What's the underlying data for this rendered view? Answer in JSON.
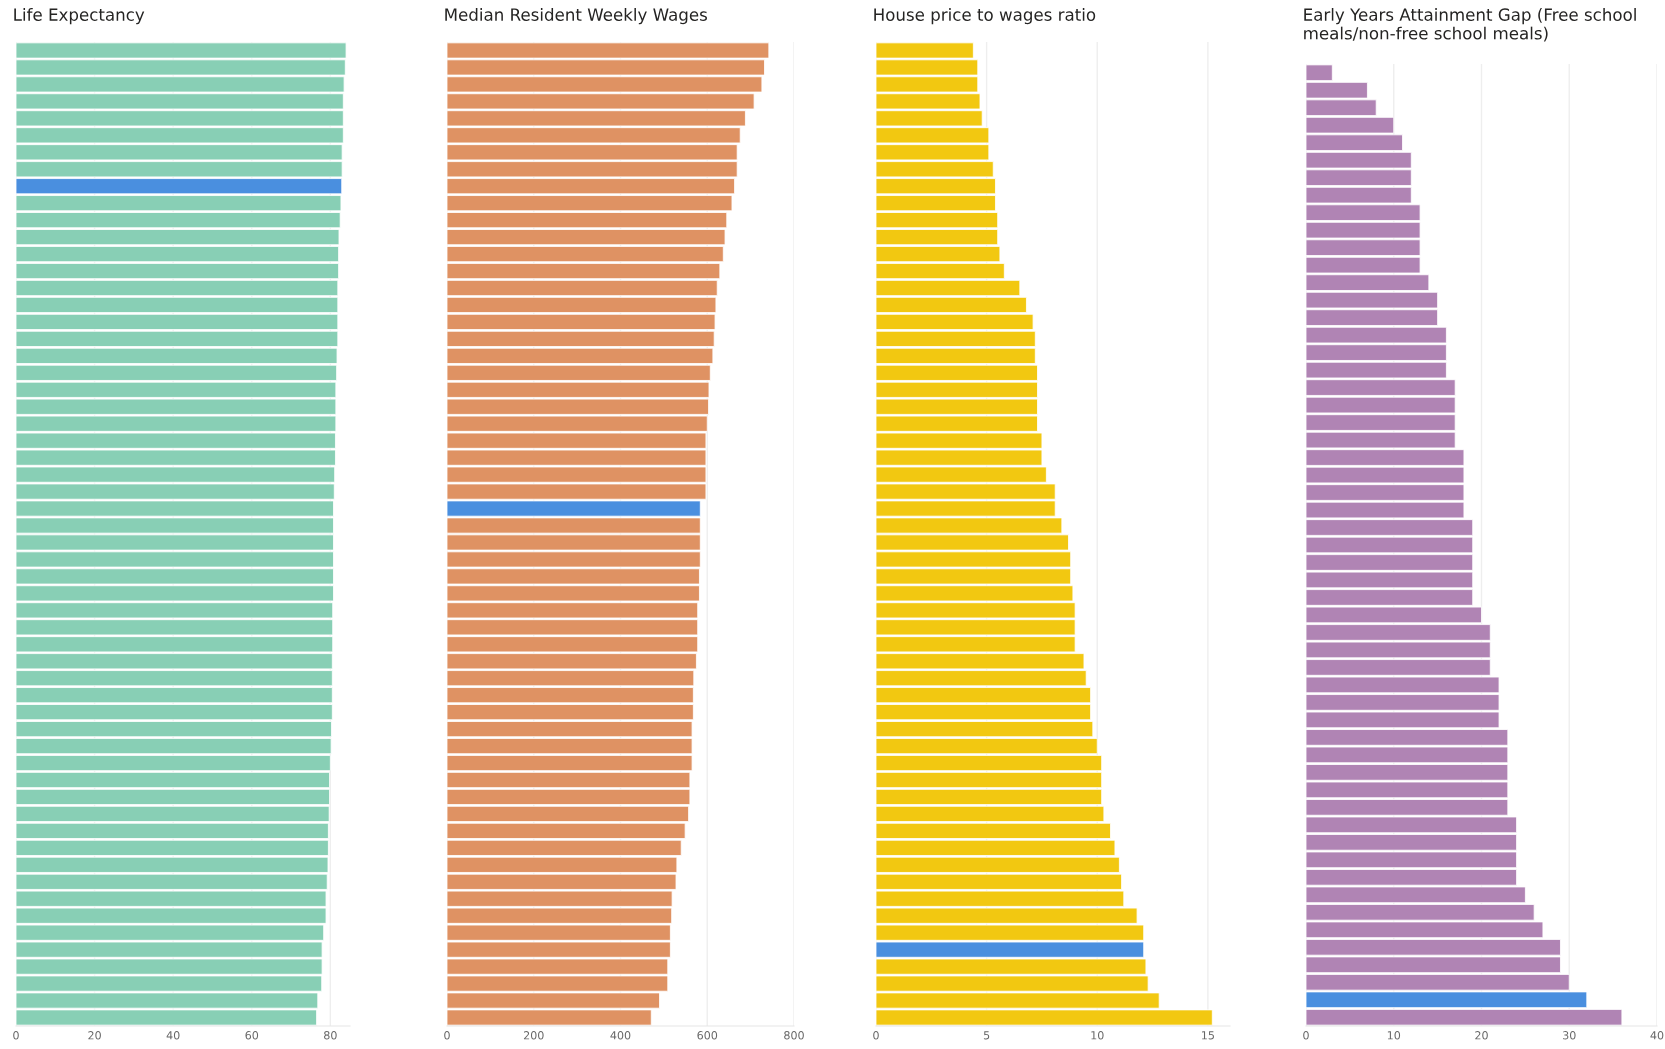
{
  "chart_data": [
    {
      "type": "bar",
      "orientation": "horizontal",
      "title": "Life Expectancy",
      "grid": "x",
      "tick_labels": "x",
      "xlim": [
        0,
        85
      ],
      "xticks": [
        0,
        20,
        40,
        60,
        80
      ],
      "categories": [
        null,
        null,
        null,
        null,
        null,
        null,
        null,
        null,
        null,
        null,
        null,
        null,
        null,
        null,
        null,
        null,
        null,
        null,
        null,
        null,
        null,
        null,
        null,
        null,
        null,
        null,
        null,
        null,
        null,
        null,
        null,
        null,
        null,
        null,
        null,
        null,
        null,
        null,
        null,
        null,
        null,
        null,
        null,
        null,
        null,
        null,
        null,
        null,
        null,
        null,
        null,
        null,
        null,
        null,
        null,
        null,
        null,
        null
      ],
      "values": [
        84.0,
        83.8,
        83.5,
        83.3,
        83.3,
        83.3,
        83.0,
        83.0,
        82.9,
        82.7,
        82.5,
        82.2,
        82.1,
        82.1,
        81.9,
        81.9,
        81.9,
        81.9,
        81.7,
        81.6,
        81.4,
        81.4,
        81.4,
        81.3,
        81.3,
        81.1,
        81.0,
        80.8,
        80.8,
        80.8,
        80.8,
        80.8,
        80.8,
        80.6,
        80.6,
        80.6,
        80.5,
        80.5,
        80.5,
        80.5,
        80.3,
        80.2,
        80.0,
        79.8,
        79.8,
        79.7,
        79.5,
        79.5,
        79.4,
        79.2,
        78.9,
        78.9,
        78.3,
        77.9,
        77.9,
        77.8,
        76.8,
        76.5
      ],
      "colors": [
        "#88cfb5",
        "#88cfb5",
        "#88cfb5",
        "#88cfb5",
        "#88cfb5",
        "#88cfb5",
        "#88cfb5",
        "#88cfb5",
        "#4a8fdf",
        "#88cfb5",
        "#88cfb5",
        "#88cfb5",
        "#88cfb5",
        "#88cfb5",
        "#88cfb5",
        "#88cfb5",
        "#88cfb5",
        "#88cfb5",
        "#88cfb5",
        "#88cfb5",
        "#88cfb5",
        "#88cfb5",
        "#88cfb5",
        "#88cfb5",
        "#88cfb5",
        "#88cfb5",
        "#88cfb5",
        "#88cfb5",
        "#88cfb5",
        "#88cfb5",
        "#88cfb5",
        "#88cfb5",
        "#88cfb5",
        "#88cfb5",
        "#88cfb5",
        "#88cfb5",
        "#88cfb5",
        "#88cfb5",
        "#88cfb5",
        "#88cfb5",
        "#88cfb5",
        "#88cfb5",
        "#88cfb5",
        "#88cfb5",
        "#88cfb5",
        "#88cfb5",
        "#88cfb5",
        "#88cfb5",
        "#88cfb5",
        "#88cfb5",
        "#88cfb5",
        "#88cfb5",
        "#88cfb5",
        "#88cfb5",
        "#88cfb5",
        "#88cfb5",
        "#88cfb5",
        "#88cfb5"
      ]
    },
    {
      "type": "bar",
      "orientation": "horizontal",
      "title": "Median Resident Weekly Wages",
      "grid": "x",
      "tick_labels": "x",
      "xlim": [
        0,
        800
      ],
      "xticks": [
        0,
        200,
        400,
        600,
        800
      ],
      "categories": [
        null,
        null,
        null,
        null,
        null,
        null,
        null,
        null,
        null,
        null,
        null,
        null,
        null,
        null,
        null,
        null,
        null,
        null,
        null,
        null,
        null,
        null,
        null,
        null,
        null,
        null,
        null,
        null,
        null,
        null,
        null,
        null,
        null,
        null,
        null,
        null,
        null,
        null,
        null,
        null,
        null,
        null,
        null,
        null,
        null,
        null,
        null,
        null,
        null,
        null,
        null,
        null,
        null,
        null,
        null,
        null,
        null,
        null
      ],
      "values": [
        742,
        732,
        726,
        708,
        688,
        676,
        669,
        669,
        663,
        657,
        645,
        641,
        637,
        629,
        623,
        620,
        618,
        616,
        613,
        607,
        604,
        603,
        600,
        597,
        597,
        597,
        597,
        584,
        584,
        584,
        584,
        582,
        582,
        578,
        578,
        578,
        575,
        569,
        568,
        568,
        565,
        565,
        565,
        560,
        560,
        557,
        549,
        540,
        530,
        528,
        519,
        518,
        515,
        515,
        509,
        509,
        490,
        471
      ],
      "colors": [
        "#df9263",
        "#df9263",
        "#df9263",
        "#df9263",
        "#df9263",
        "#df9263",
        "#df9263",
        "#df9263",
        "#df9263",
        "#df9263",
        "#df9263",
        "#df9263",
        "#df9263",
        "#df9263",
        "#df9263",
        "#df9263",
        "#df9263",
        "#df9263",
        "#df9263",
        "#df9263",
        "#df9263",
        "#df9263",
        "#df9263",
        "#df9263",
        "#df9263",
        "#df9263",
        "#df9263",
        "#4a8fdf",
        "#df9263",
        "#df9263",
        "#df9263",
        "#df9263",
        "#df9263",
        "#df9263",
        "#df9263",
        "#df9263",
        "#df9263",
        "#df9263",
        "#df9263",
        "#df9263",
        "#df9263",
        "#df9263",
        "#df9263",
        "#df9263",
        "#df9263",
        "#df9263",
        "#df9263",
        "#df9263",
        "#df9263",
        "#df9263",
        "#df9263",
        "#df9263",
        "#df9263",
        "#df9263",
        "#df9263",
        "#df9263",
        "#df9263",
        "#df9263"
      ]
    },
    {
      "type": "bar",
      "orientation": "horizontal",
      "title": "House price to wages ratio",
      "grid": "x",
      "tick_labels": "x",
      "xlim": [
        0,
        16
      ],
      "xticks": [
        0,
        5,
        10,
        15
      ],
      "categories": [
        null,
        null,
        null,
        null,
        null,
        null,
        null,
        null,
        null,
        null,
        null,
        null,
        null,
        null,
        null,
        null,
        null,
        null,
        null,
        null,
        null,
        null,
        null,
        null,
        null,
        null,
        null,
        null,
        null,
        null,
        null,
        null,
        null,
        null,
        null,
        null,
        null,
        null,
        null,
        null,
        null,
        null,
        null,
        null,
        null,
        null,
        null,
        null,
        null,
        null,
        null,
        null,
        null,
        null,
        null,
        null,
        null,
        null
      ],
      "values": [
        4.4,
        4.6,
        4.6,
        4.7,
        4.8,
        5.1,
        5.1,
        5.3,
        5.4,
        5.4,
        5.5,
        5.5,
        5.6,
        5.8,
        6.5,
        6.8,
        7.1,
        7.2,
        7.2,
        7.3,
        7.3,
        7.3,
        7.3,
        7.5,
        7.5,
        7.7,
        8.1,
        8.1,
        8.4,
        8.7,
        8.8,
        8.8,
        8.9,
        9.0,
        9.0,
        9.0,
        9.4,
        9.5,
        9.7,
        9.7,
        9.8,
        10.0,
        10.2,
        10.2,
        10.2,
        10.3,
        10.6,
        10.8,
        11.0,
        11.1,
        11.2,
        11.8,
        12.1,
        12.1,
        12.2,
        12.3,
        12.8,
        15.2
      ],
      "colors": [
        "#f2c811",
        "#f2c811",
        "#f2c811",
        "#f2c811",
        "#f2c811",
        "#f2c811",
        "#f2c811",
        "#f2c811",
        "#f2c811",
        "#f2c811",
        "#f2c811",
        "#f2c811",
        "#f2c811",
        "#f2c811",
        "#f2c811",
        "#f2c811",
        "#f2c811",
        "#f2c811",
        "#f2c811",
        "#f2c811",
        "#f2c811",
        "#f2c811",
        "#f2c811",
        "#f2c811",
        "#f2c811",
        "#f2c811",
        "#f2c811",
        "#f2c811",
        "#f2c811",
        "#f2c811",
        "#f2c811",
        "#f2c811",
        "#f2c811",
        "#f2c811",
        "#f2c811",
        "#f2c811",
        "#f2c811",
        "#f2c811",
        "#f2c811",
        "#f2c811",
        "#f2c811",
        "#f2c811",
        "#f2c811",
        "#f2c811",
        "#f2c811",
        "#f2c811",
        "#f2c811",
        "#f2c811",
        "#f2c811",
        "#f2c811",
        "#f2c811",
        "#f2c811",
        "#f2c811",
        "#4a8fdf",
        "#f2c811",
        "#f2c811",
        "#f2c811",
        "#f2c811"
      ]
    },
    {
      "type": "bar",
      "orientation": "horizontal",
      "title": "Early Years Attainment Gap (Free school meals/non-free school meals)",
      "grid": "x",
      "tick_labels": "x",
      "xlim": [
        0,
        40
      ],
      "xticks": [
        0,
        10,
        20,
        30,
        40
      ],
      "categories": [
        null,
        null,
        null,
        null,
        null,
        null,
        null,
        null,
        null,
        null,
        null,
        null,
        null,
        null,
        null,
        null,
        null,
        null,
        null,
        null,
        null,
        null,
        null,
        null,
        null,
        null,
        null,
        null,
        null,
        null,
        null,
        null,
        null,
        null,
        null,
        null,
        null,
        null,
        null,
        null,
        null,
        null,
        null,
        null,
        null,
        null,
        null,
        null,
        null,
        null,
        null,
        null,
        null,
        null,
        null
      ],
      "values": [
        3,
        7,
        8,
        10,
        11,
        12,
        12,
        12,
        13,
        13,
        13,
        13,
        14,
        15,
        15,
        16,
        16,
        16,
        17,
        17,
        17,
        17,
        18,
        18,
        18,
        18,
        19,
        19,
        19,
        19,
        19,
        20,
        21,
        21,
        21,
        22,
        22,
        22,
        23,
        23,
        23,
        23,
        23,
        24,
        24,
        24,
        24,
        25,
        26,
        27,
        29,
        29,
        30,
        32,
        36
      ],
      "colors": [
        "#b084b4",
        "#b084b4",
        "#b084b4",
        "#b084b4",
        "#b084b4",
        "#b084b4",
        "#b084b4",
        "#b084b4",
        "#b084b4",
        "#b084b4",
        "#b084b4",
        "#b084b4",
        "#b084b4",
        "#b084b4",
        "#b084b4",
        "#b084b4",
        "#b084b4",
        "#b084b4",
        "#b084b4",
        "#b084b4",
        "#b084b4",
        "#b084b4",
        "#b084b4",
        "#b084b4",
        "#b084b4",
        "#b084b4",
        "#b084b4",
        "#b084b4",
        "#b084b4",
        "#b084b4",
        "#b084b4",
        "#b084b4",
        "#b084b4",
        "#b084b4",
        "#b084b4",
        "#b084b4",
        "#b084b4",
        "#b084b4",
        "#b084b4",
        "#b084b4",
        "#b084b4",
        "#b084b4",
        "#b084b4",
        "#b084b4",
        "#b084b4",
        "#b084b4",
        "#b084b4",
        "#b084b4",
        "#b084b4",
        "#b084b4",
        "#b084b4",
        "#b084b4",
        "#b084b4",
        "#4a8fdf",
        "#b084b4"
      ]
    }
  ]
}
